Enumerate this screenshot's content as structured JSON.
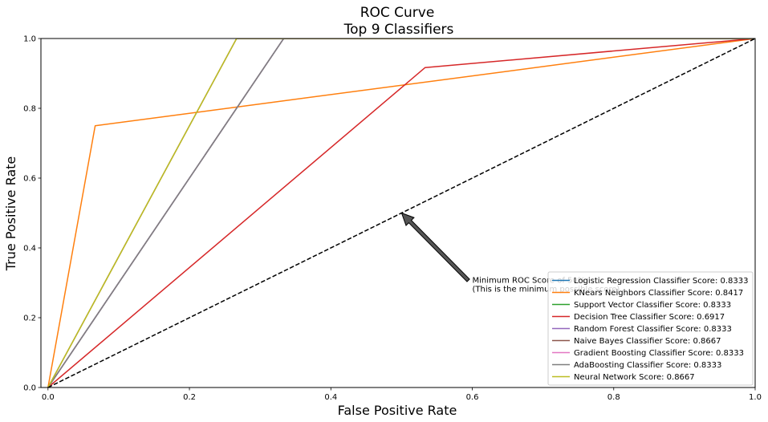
{
  "chart_data": {
    "type": "line",
    "title": "ROC Curve",
    "subtitle": "Top 9 Classifiers",
    "xlabel": "False Positive Rate",
    "ylabel": "True Positive Rate",
    "xlim": [
      -0.01,
      1.0
    ],
    "ylim": [
      0.0,
      1.0
    ],
    "xticks": [
      "0.0",
      "0.2",
      "0.4",
      "0.6",
      "0.8",
      "1.0"
    ],
    "yticks": [
      "0.0",
      "0.2",
      "0.4",
      "0.6",
      "0.8",
      "1.0"
    ],
    "grid": false,
    "legend_position": "lower-right",
    "series": [
      {
        "name": "Logistic Regression Classifier Score: 0.8333",
        "color": "#1f77b4",
        "x": [
          0.0,
          0.3333,
          1.0
        ],
        "y": [
          0.0,
          1.0,
          1.0
        ]
      },
      {
        "name": "KNears Neighbors Classifier Score: 0.8417",
        "color": "#ff7f0e",
        "x": [
          0.0,
          0.0667,
          1.0
        ],
        "y": [
          0.0,
          0.75,
          1.0
        ]
      },
      {
        "name": "Support Vector Classifier Score: 0.8333",
        "color": "#2ca02c",
        "x": [
          0.0,
          0.3333,
          1.0
        ],
        "y": [
          0.0,
          1.0,
          1.0
        ]
      },
      {
        "name": "Decision Tree Classifier Score: 0.6917",
        "color": "#d62728",
        "x": [
          0.0,
          0.5333,
          1.0
        ],
        "y": [
          0.0,
          0.9167,
          1.0
        ]
      },
      {
        "name": "Random Forest Classifier Score: 0.8333",
        "color": "#9467bd",
        "x": [
          0.0,
          0.3333,
          1.0
        ],
        "y": [
          0.0,
          1.0,
          1.0
        ]
      },
      {
        "name": "Naive Bayes Classifier Score: 0.8667",
        "color": "#8c564b",
        "x": [
          0.0,
          0.2667,
          1.0
        ],
        "y": [
          0.0,
          1.0,
          1.0
        ]
      },
      {
        "name": "Gradient Boosting Classifier Score: 0.8333",
        "color": "#e377c2",
        "x": [
          0.0,
          0.3333,
          1.0
        ],
        "y": [
          0.0,
          1.0,
          1.0
        ]
      },
      {
        "name": "AdaBoosting Classifier Score: 0.8333",
        "color": "#7f7f7f",
        "x": [
          0.0,
          0.3333,
          1.0
        ],
        "y": [
          0.0,
          1.0,
          1.0
        ]
      },
      {
        "name": "Neural Network Score: 0.8667",
        "color": "#bcbd22",
        "x": [
          0.0,
          0.2667,
          1.0
        ],
        "y": [
          0.0,
          1.0,
          1.0
        ]
      }
    ],
    "reference_line": {
      "x": [
        0.0,
        1.0
      ],
      "y": [
        0.0,
        1.0
      ],
      "color": "#000000",
      "style": "dashed"
    },
    "annotation": {
      "text_lines": [
        "Minimum ROC Score of 50%",
        " (This is the minimum possible score)"
      ],
      "text_at": [
        0.6,
        0.3
      ],
      "arrow_tip": [
        0.5,
        0.5
      ],
      "arrow_color": "#555555"
    }
  }
}
